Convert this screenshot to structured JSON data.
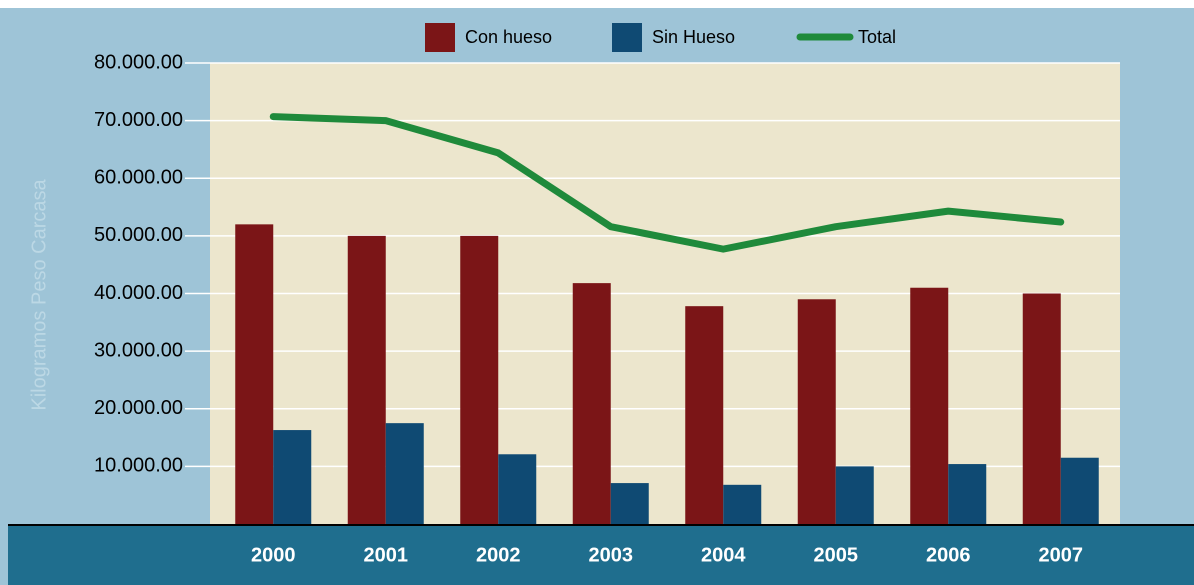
{
  "chart_data": {
    "type": "bar",
    "y_label": "Kilogramos Peso Carcasa",
    "categories": [
      "2000",
      "2001",
      "2002",
      "2003",
      "2004",
      "2005",
      "2006",
      "2007"
    ],
    "series": [
      {
        "name": "Con hueso",
        "type": "bar",
        "color": "#7b1517",
        "values": [
          52000,
          50000,
          50000,
          41800,
          37800,
          39000,
          41000,
          40000
        ]
      },
      {
        "name": "Sin Hueso",
        "type": "bar",
        "color": "#0f4a73",
        "values": [
          16300,
          17500,
          12100,
          7100,
          6800,
          10000,
          10400,
          11500
        ]
      },
      {
        "name": "Total",
        "type": "line",
        "color": "#1f8a3b",
        "values": [
          70700,
          70000,
          64400,
          51600,
          47700,
          51600,
          54300,
          52400
        ]
      }
    ],
    "ylim": [
      0,
      80000
    ],
    "yticks": [
      {
        "value": 10000,
        "label": "10.000.00"
      },
      {
        "value": 20000,
        "label": "20.000.00"
      },
      {
        "value": 30000,
        "label": "30.000.00"
      },
      {
        "value": 40000,
        "label": "40.000.00"
      },
      {
        "value": 50000,
        "label": "50.000.00"
      },
      {
        "value": 60000,
        "label": "60.000.00"
      },
      {
        "value": 70000,
        "label": "70.000.00"
      },
      {
        "value": 80000,
        "label": "80.000.00"
      }
    ],
    "grid": true
  }
}
